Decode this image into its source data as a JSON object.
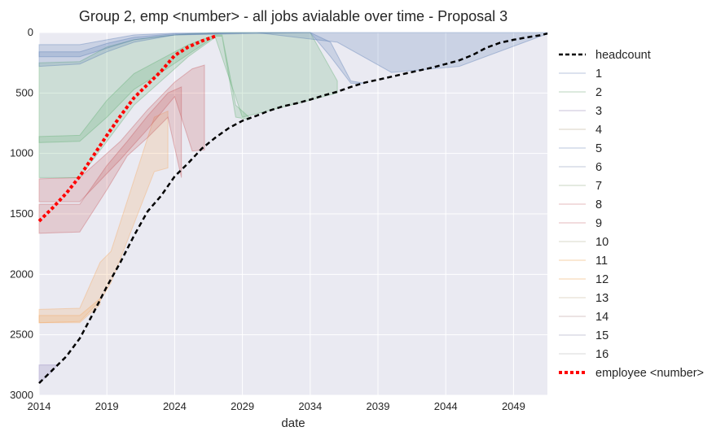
{
  "chart_data": {
    "type": "area",
    "title": "Group 2, emp <number> - all jobs avialable over time - Proposal 3",
    "xlabel": "date",
    "ylabel": "",
    "xlim": [
      2014,
      2051.5
    ],
    "ylim": [
      3000,
      0
    ],
    "y_inverted": true,
    "grid": true,
    "legend_placement": "right",
    "xticks": [
      2014,
      2019,
      2024,
      2029,
      2034,
      2039,
      2044,
      2049
    ],
    "yticks": [
      0,
      500,
      1000,
      1500,
      2000,
      2500,
      3000
    ],
    "colors": {
      "background": "#eaeaf2",
      "grid": "#ffffff",
      "headcount": "#000000",
      "employee": "#ff0000",
      "blue": "#4c72b0",
      "green": "#55a868",
      "red": "#c44e52",
      "orange": "#f5a455",
      "purple": "#8172b2"
    },
    "legend": [
      {
        "label": "headcount",
        "style": "dashed",
        "color": "#000000"
      },
      {
        "label": "1",
        "style": "thin",
        "color": "#b8c6de"
      },
      {
        "label": "2",
        "style": "thin",
        "color": "#b8d6be"
      },
      {
        "label": "3",
        "style": "thin",
        "color": "#c8c0d8"
      },
      {
        "label": "4",
        "style": "thin",
        "color": "#d9d0c0"
      },
      {
        "label": "5",
        "style": "thin",
        "color": "#b8c6de"
      },
      {
        "label": "6",
        "style": "thin",
        "color": "#c0c8d8"
      },
      {
        "label": "7",
        "style": "thin",
        "color": "#c8d6c0"
      },
      {
        "label": "8",
        "style": "thin",
        "color": "#e6b8bc"
      },
      {
        "label": "9",
        "style": "thin",
        "color": "#e6b8bc"
      },
      {
        "label": "10",
        "style": "thin",
        "color": "#d8d8c8"
      },
      {
        "label": "11",
        "style": "thin",
        "color": "#f5d2a8"
      },
      {
        "label": "12",
        "style": "thin",
        "color": "#f5d2a8"
      },
      {
        "label": "13",
        "style": "thin",
        "color": "#e0d8c8"
      },
      {
        "label": "14",
        "style": "thin",
        "color": "#d8c8c8"
      },
      {
        "label": "15",
        "style": "thin",
        "color": "#c8c8d8"
      },
      {
        "label": "16",
        "style": "thin",
        "color": "#d8d8d8"
      },
      {
        "label": "employee <number>",
        "style": "dotted",
        "color": "#ff0000"
      }
    ],
    "headcount": {
      "x": [
        2014,
        2015,
        2016,
        2017,
        2018,
        2019,
        2020,
        2021,
        2022,
        2023,
        2024,
        2025,
        2026,
        2027,
        2028,
        2029,
        2030,
        2031,
        2032,
        2033,
        2034,
        2035,
        2036,
        2037,
        2038,
        2039,
        2040,
        2041,
        2042,
        2043,
        2044,
        2045,
        2046,
        2047,
        2048,
        2049,
        2050,
        2051,
        2051.5
      ],
      "y": [
        2900,
        2790,
        2680,
        2530,
        2320,
        2100,
        1900,
        1680,
        1480,
        1350,
        1190,
        1080,
        960,
        870,
        790,
        730,
        690,
        645,
        610,
        585,
        555,
        520,
        490,
        450,
        415,
        390,
        365,
        340,
        315,
        290,
        260,
        230,
        185,
        125,
        85,
        60,
        40,
        22,
        8
      ]
    },
    "employee": {
      "x": [
        2014,
        2015,
        2016,
        2017,
        2018,
        2019,
        2020,
        2021,
        2022,
        2023,
        2024,
        2025,
        2026,
        2027
      ],
      "y": [
        1560,
        1450,
        1330,
        1190,
        1020,
        850,
        690,
        540,
        430,
        320,
        190,
        120,
        70,
        30
      ]
    },
    "bands": [
      {
        "color": "#8172b2",
        "x": [
          2014,
          2014.5,
          2015,
          2015.3
        ],
        "top": [
          2750,
          2750,
          2750,
          2750
        ],
        "bottom": [
          2900,
          2850,
          2800,
          2750
        ]
      },
      {
        "color": "#f5a455",
        "x": [
          2014,
          2017,
          2018.5,
          2019.3,
          2022.5,
          2023.5
        ],
        "top": [
          2290,
          2280,
          1900,
          1810,
          700,
          650
        ],
        "bottom": [
          2400,
          2390,
          2220,
          2070,
          1150,
          1120
        ]
      },
      {
        "color": "#f5a455",
        "x": [
          2014,
          2017,
          2018.5
        ],
        "top": [
          2340,
          2340,
          2200
        ],
        "bottom": [
          2400,
          2400,
          2250
        ]
      },
      {
        "color": "#c44e52",
        "x": [
          2014,
          2017,
          2019,
          2020.5,
          2022,
          2023.5,
          2024.5
        ],
        "top": [
          1420,
          1420,
          1100,
          900,
          690,
          500,
          450
        ],
        "bottom": [
          1660,
          1650,
          1300,
          1020,
          870,
          700,
          1200
        ]
      },
      {
        "color": "#c44e52",
        "x": [
          2014,
          2017,
          2020,
          2022,
          2024,
          2025.3,
          2026.2
        ],
        "top": [
          1210,
          1200,
          900,
          640,
          410,
          300,
          270
        ],
        "bottom": [
          1400,
          1400,
          1050,
          800,
          530,
          980,
          970
        ]
      },
      {
        "color": "#55a868",
        "x": [
          2014,
          2017,
          2019,
          2021,
          2023,
          2025,
          2027,
          2027.5,
          2028.5,
          2029.5
        ],
        "top": [
          860,
          850,
          560,
          340,
          220,
          100,
          20,
          20,
          600,
          700
        ],
        "bottom": [
          910,
          900,
          700,
          470,
          330,
          180,
          30,
          30,
          700,
          720
        ]
      },
      {
        "color": "#55a868",
        "x": [
          2014,
          2017,
          2019,
          2021,
          2023,
          2025,
          2027,
          2029,
          2034,
          2036
        ],
        "top": [
          250,
          240,
          120,
          60,
          30,
          10,
          0,
          0,
          0,
          400
        ],
        "bottom": [
          1200,
          1200,
          900,
          600,
          400,
          200,
          40,
          700,
          560,
          500
        ]
      },
      {
        "color": "#4c72b0",
        "x": [
          2014,
          2017,
          2019,
          2021,
          2024,
          2034,
          2035.5,
          2037,
          2038
        ],
        "top": [
          160,
          160,
          90,
          40,
          10,
          0,
          80,
          400,
          420
        ],
        "bottom": [
          200,
          200,
          130,
          60,
          20,
          0,
          200,
          420,
          420
        ]
      },
      {
        "color": "#4c72b0",
        "x": [
          2014,
          2017,
          2019,
          2021,
          2024,
          2030,
          2036,
          2040,
          2045,
          2051.5
        ],
        "top": [
          100,
          100,
          60,
          20,
          5,
          0,
          0,
          0,
          0,
          0
        ],
        "bottom": [
          280,
          260,
          160,
          80,
          20,
          0,
          80,
          330,
          280,
          10
        ]
      }
    ]
  }
}
